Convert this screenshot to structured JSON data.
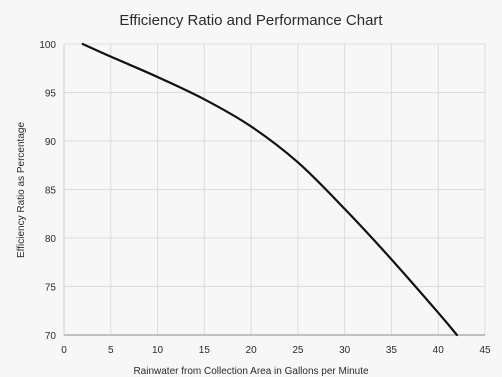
{
  "chart_data": {
    "type": "line",
    "title": "Efficiency Ratio and Performance Chart",
    "xlabel": "Rainwater from Collection Area in Gallons per Minute",
    "ylabel": "Efficiency Ratio as Percentage",
    "xlim": [
      0,
      45
    ],
    "ylim": [
      70,
      100
    ],
    "xticks": [
      0,
      5,
      10,
      15,
      20,
      25,
      30,
      35,
      40,
      45
    ],
    "yticks": [
      70,
      75,
      80,
      85,
      90,
      95,
      100
    ],
    "grid": true,
    "legend": "none",
    "series": [
      {
        "color": "#111111",
        "x": [
          2,
          5,
          10,
          15,
          20,
          25,
          30,
          35,
          40,
          42
        ],
        "y": [
          100,
          98.7,
          96.6,
          94.3,
          91.5,
          87.8,
          83.0,
          77.8,
          72.3,
          70.0
        ]
      }
    ]
  }
}
